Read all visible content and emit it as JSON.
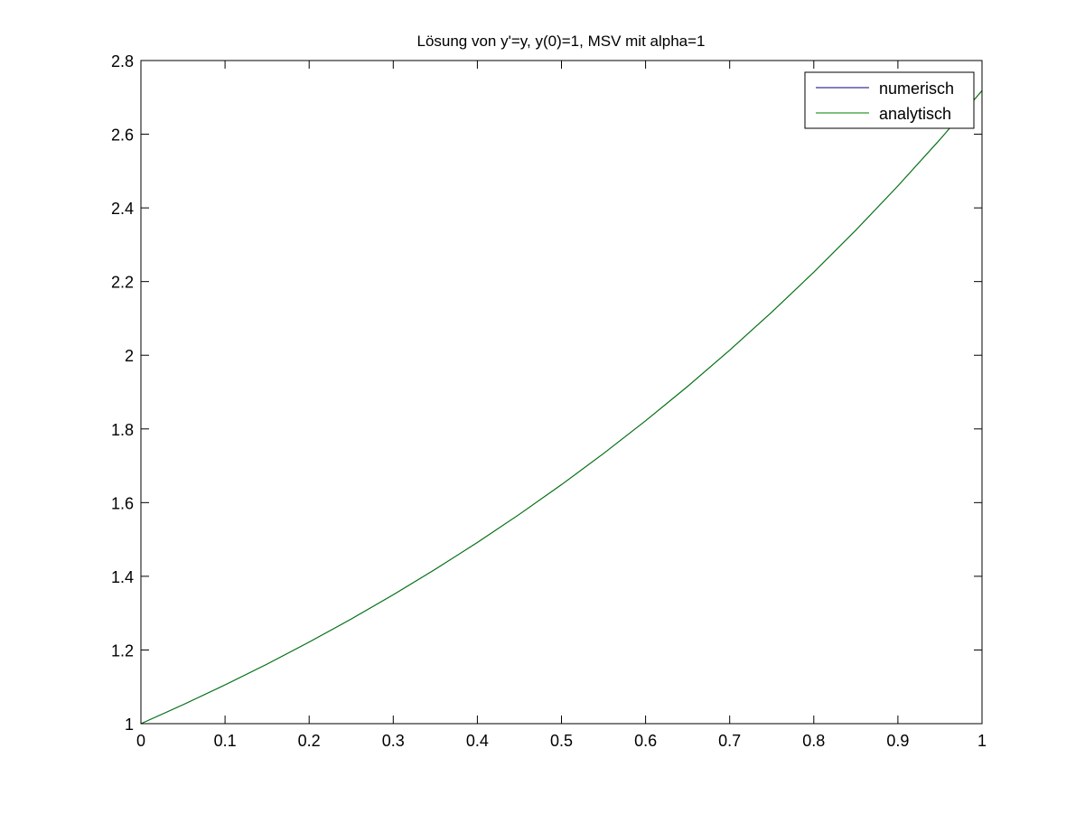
{
  "chart_data": {
    "type": "line",
    "title": "Lösung von y'=y, y(0)=1, MSV mit alpha=1",
    "xlabel": "",
    "ylabel": "",
    "xlim": [
      0,
      1
    ],
    "ylim": [
      1,
      2.8
    ],
    "xticks": [
      "0",
      "0.1",
      "0.2",
      "0.3",
      "0.4",
      "0.5",
      "0.6",
      "0.7",
      "0.8",
      "0.9",
      "1"
    ],
    "yticks": [
      "1",
      "1.2",
      "1.4",
      "1.6",
      "1.8",
      "2",
      "2.2",
      "2.4",
      "2.6",
      "2.8"
    ],
    "grid": false,
    "legend_position": "top-right",
    "x": [
      0,
      0.05,
      0.1,
      0.15,
      0.2,
      0.25,
      0.3,
      0.35,
      0.4,
      0.45,
      0.5,
      0.55,
      0.6,
      0.65,
      0.7,
      0.75,
      0.8,
      0.85,
      0.9,
      0.95,
      1.0
    ],
    "series": [
      {
        "name": "numerisch",
        "color": "#00007f",
        "values": [
          1,
          1.0513,
          1.1052,
          1.1618,
          1.2214,
          1.284,
          1.3499,
          1.4191,
          1.4918,
          1.5683,
          1.6487,
          1.7333,
          1.8221,
          1.9155,
          2.0138,
          2.117,
          2.2255,
          2.3396,
          2.4596,
          2.5857,
          2.7183
        ]
      },
      {
        "name": "analytisch",
        "color": "#007f00",
        "values": [
          1,
          1.0513,
          1.1052,
          1.1618,
          1.2214,
          1.284,
          1.3499,
          1.4191,
          1.4918,
          1.5683,
          1.6487,
          1.7333,
          1.8221,
          1.9155,
          2.0138,
          2.117,
          2.2255,
          2.3396,
          2.4596,
          2.5857,
          2.7183
        ]
      }
    ]
  }
}
